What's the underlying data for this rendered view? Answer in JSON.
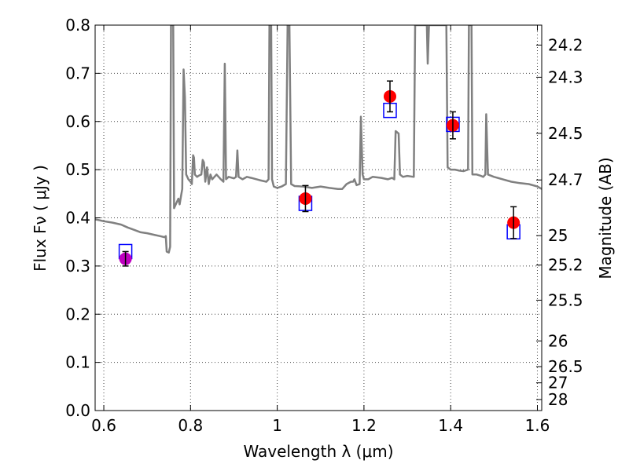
{
  "chart_data": {
    "type": "scatter",
    "xlabel": "Wavelength  λ (μm)",
    "ylabel_left": "Flux  Fν  ( μJy )",
    "ylabel_right": "Magnitude (AB)",
    "xlim": [
      0.58,
      1.61
    ],
    "ylim": [
      0.0,
      0.8
    ],
    "x_ticks": [
      0.6,
      0.8,
      1.0,
      1.2,
      1.4,
      1.6
    ],
    "x_tick_labels": [
      "0.6",
      "0.8",
      "1",
      "1.2",
      "1.4",
      "1.6"
    ],
    "y_ticks": [
      0.0,
      0.1,
      0.2,
      0.3,
      0.4,
      0.5,
      0.6,
      0.7,
      0.8
    ],
    "y_tick_labels": [
      "0.0",
      "0.1",
      "0.2",
      "0.3",
      "0.4",
      "0.5",
      "0.6",
      "0.7",
      "0.8"
    ],
    "mag_ticks": [
      24.2,
      24.3,
      24.5,
      24.7,
      25,
      25.2,
      25.5,
      26,
      26.5,
      27,
      28
    ],
    "mag_tick_labels": [
      "24.2",
      "24.3",
      "24.5",
      "24.7",
      "25",
      "25.2",
      "25.5",
      "26",
      "26.5",
      "27",
      "28"
    ],
    "grid": true,
    "colors": {
      "spectrum": "#808080",
      "observed": "#ff0000",
      "observed_first": "#bf00bf",
      "model_box": "#0000ff",
      "errorbar": "#000000",
      "grid": "#444444"
    },
    "observed_points": [
      {
        "x": 0.65,
        "y": 0.315,
        "err": 0.015
      },
      {
        "x": 1.065,
        "y": 0.44,
        "err": 0.027
      },
      {
        "x": 1.26,
        "y": 0.652,
        "err": 0.032
      },
      {
        "x": 1.405,
        "y": 0.592,
        "err": 0.028
      },
      {
        "x": 1.545,
        "y": 0.39,
        "err": 0.033
      }
    ],
    "model_points": [
      {
        "x": 0.65,
        "y": 0.33
      },
      {
        "x": 1.065,
        "y": 0.43
      },
      {
        "x": 1.26,
        "y": 0.623
      },
      {
        "x": 1.405,
        "y": 0.594
      },
      {
        "x": 1.545,
        "y": 0.371
      }
    ],
    "spectrum": [
      [
        0.58,
        0.397
      ],
      [
        0.6,
        0.393
      ],
      [
        0.62,
        0.39
      ],
      [
        0.64,
        0.386
      ],
      [
        0.655,
        0.38
      ],
      [
        0.67,
        0.375
      ],
      [
        0.685,
        0.37
      ],
      [
        0.7,
        0.368
      ],
      [
        0.715,
        0.365
      ],
      [
        0.73,
        0.362
      ],
      [
        0.74,
        0.36
      ],
      [
        0.743,
        0.362
      ],
      [
        0.745,
        0.33
      ],
      [
        0.75,
        0.328
      ],
      [
        0.753,
        0.34
      ],
      [
        0.755,
        0.8
      ],
      [
        0.757,
        0.8
      ],
      [
        0.76,
        0.8
      ],
      [
        0.762,
        0.42
      ],
      [
        0.767,
        0.43
      ],
      [
        0.772,
        0.44
      ],
      [
        0.775,
        0.428
      ],
      [
        0.778,
        0.445
      ],
      [
        0.781,
        0.46
      ],
      [
        0.784,
        0.708
      ],
      [
        0.787,
        0.65
      ],
      [
        0.79,
        0.49
      ],
      [
        0.795,
        0.48
      ],
      [
        0.8,
        0.475
      ],
      [
        0.803,
        0.47
      ],
      [
        0.806,
        0.53
      ],
      [
        0.808,
        0.525
      ],
      [
        0.81,
        0.49
      ],
      [
        0.815,
        0.485
      ],
      [
        0.82,
        0.488
      ],
      [
        0.825,
        0.49
      ],
      [
        0.828,
        0.52
      ],
      [
        0.831,
        0.515
      ],
      [
        0.834,
        0.475
      ],
      [
        0.838,
        0.505
      ],
      [
        0.842,
        0.47
      ],
      [
        0.846,
        0.49
      ],
      [
        0.85,
        0.48
      ],
      [
        0.86,
        0.49
      ],
      [
        0.87,
        0.48
      ],
      [
        0.876,
        0.475
      ],
      [
        0.879,
        0.72
      ],
      [
        0.882,
        0.48
      ],
      [
        0.888,
        0.485
      ],
      [
        0.9,
        0.482
      ],
      [
        0.905,
        0.485
      ],
      [
        0.908,
        0.54
      ],
      [
        0.911,
        0.485
      ],
      [
        0.92,
        0.48
      ],
      [
        0.93,
        0.485
      ],
      [
        0.94,
        0.483
      ],
      [
        0.96,
        0.478
      ],
      [
        0.975,
        0.475
      ],
      [
        0.98,
        0.48
      ],
      [
        0.982,
        0.8
      ],
      [
        0.986,
        0.8
      ],
      [
        0.988,
        0.48
      ],
      [
        0.992,
        0.465
      ],
      [
        1.0,
        0.462
      ],
      [
        1.01,
        0.465
      ],
      [
        1.02,
        0.47
      ],
      [
        1.024,
        0.8
      ],
      [
        1.028,
        0.8
      ],
      [
        1.032,
        0.47
      ],
      [
        1.04,
        0.466
      ],
      [
        1.06,
        0.465
      ],
      [
        1.08,
        0.462
      ],
      [
        1.1,
        0.465
      ],
      [
        1.12,
        0.462
      ],
      [
        1.14,
        0.46
      ],
      [
        1.15,
        0.46
      ],
      [
        1.16,
        0.47
      ],
      [
        1.17,
        0.475
      ],
      [
        1.175,
        0.475
      ],
      [
        1.178,
        0.48
      ],
      [
        1.183,
        0.468
      ],
      [
        1.19,
        0.47
      ],
      [
        1.193,
        0.61
      ],
      [
        1.197,
        0.49
      ],
      [
        1.2,
        0.48
      ],
      [
        1.21,
        0.48
      ],
      [
        1.22,
        0.485
      ],
      [
        1.24,
        0.483
      ],
      [
        1.255,
        0.48
      ],
      [
        1.265,
        0.483
      ],
      [
        1.27,
        0.48
      ],
      [
        1.273,
        0.58
      ],
      [
        1.28,
        0.575
      ],
      [
        1.283,
        0.49
      ],
      [
        1.29,
        0.485
      ],
      [
        1.3,
        0.487
      ],
      [
        1.315,
        0.485
      ],
      [
        1.318,
        0.8
      ],
      [
        1.345,
        0.8
      ],
      [
        1.347,
        0.72
      ],
      [
        1.35,
        0.8
      ],
      [
        1.38,
        0.8
      ],
      [
        1.39,
        0.8
      ],
      [
        1.393,
        0.505
      ],
      [
        1.4,
        0.5
      ],
      [
        1.41,
        0.5
      ],
      [
        1.42,
        0.498
      ],
      [
        1.43,
        0.497
      ],
      [
        1.44,
        0.5
      ],
      [
        1.442,
        0.8
      ],
      [
        1.448,
        0.8
      ],
      [
        1.45,
        0.49
      ],
      [
        1.46,
        0.49
      ],
      [
        1.47,
        0.487
      ],
      [
        1.475,
        0.485
      ],
      [
        1.48,
        0.49
      ],
      [
        1.482,
        0.615
      ],
      [
        1.486,
        0.49
      ],
      [
        1.5,
        0.485
      ],
      [
        1.52,
        0.48
      ],
      [
        1.54,
        0.475
      ],
      [
        1.56,
        0.472
      ],
      [
        1.58,
        0.47
      ],
      [
        1.6,
        0.465
      ],
      [
        1.61,
        0.46
      ]
    ]
  }
}
